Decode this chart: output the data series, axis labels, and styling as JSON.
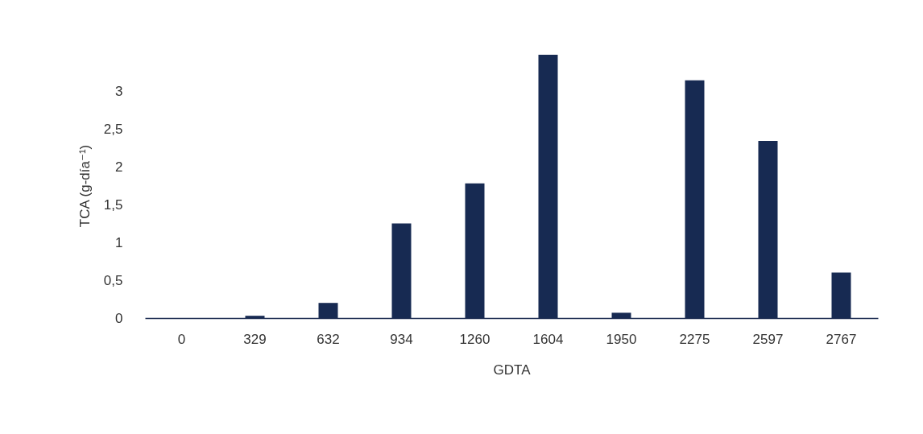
{
  "chart_data": {
    "type": "bar",
    "xlabel": "GDTA",
    "ylabel": "TCA (g-día⁻¹)",
    "categories": [
      "0",
      "329",
      "632",
      "934",
      "1260",
      "1604",
      "1950",
      "2275",
      "2597",
      "2767"
    ],
    "values": [
      0,
      0.03,
      0.2,
      1.25,
      1.78,
      3.48,
      0.07,
      3.14,
      2.34,
      0.6
    ],
    "color": "#172a52",
    "ylim": [
      0,
      3.5
    ],
    "yticks": [
      0,
      {
        "value": 0.5,
        "label": "0,5"
      },
      1,
      {
        "value": 1.5,
        "label": "1,5"
      },
      2,
      {
        "value": 2.5,
        "label": "2,5"
      },
      3
    ],
    "grid": false
  }
}
